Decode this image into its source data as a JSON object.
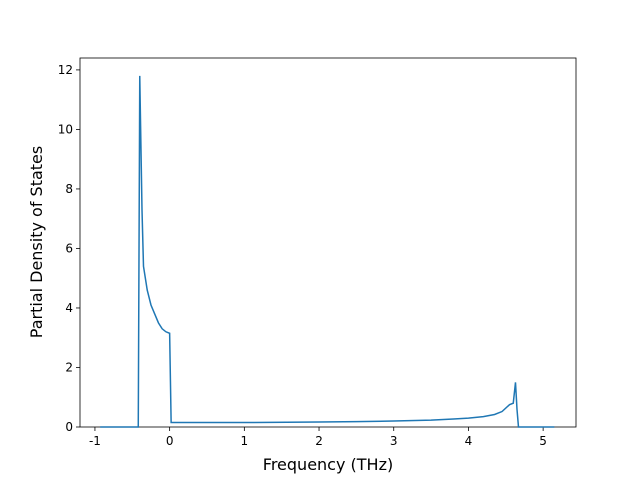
{
  "chart_data": {
    "type": "line",
    "x_label": "Frequency (THz)",
    "y_label": "Partial Density of States",
    "xlim": [
      -1.2,
      5.44
    ],
    "ylim": [
      0,
      12.4
    ],
    "xticks": [
      -1,
      0,
      1,
      2,
      3,
      4,
      5
    ],
    "yticks": [
      0,
      2,
      4,
      6,
      8,
      10,
      12
    ],
    "x": [
      -0.93,
      -0.42,
      -0.4,
      -0.37,
      -0.35,
      -0.3,
      -0.25,
      -0.2,
      -0.15,
      -0.1,
      -0.05,
      0,
      0.02,
      1,
      2,
      2.5,
      3,
      3.5,
      3.8,
      4.0,
      4.2,
      4.35,
      4.45,
      4.55,
      4.6,
      4.63,
      4.65,
      4.67,
      5.15
    ],
    "series": [
      {
        "color": "#1f77b4",
        "values": [
          0,
          0,
          11.8,
          7.3,
          5.4,
          4.6,
          4.1,
          3.8,
          3.5,
          3.3,
          3.2,
          3.15,
          0.15,
          0.15,
          0.17,
          0.18,
          0.2,
          0.23,
          0.27,
          0.3,
          0.35,
          0.42,
          0.52,
          0.75,
          0.8,
          1.5,
          0.6,
          0,
          0
        ]
      }
    ]
  }
}
